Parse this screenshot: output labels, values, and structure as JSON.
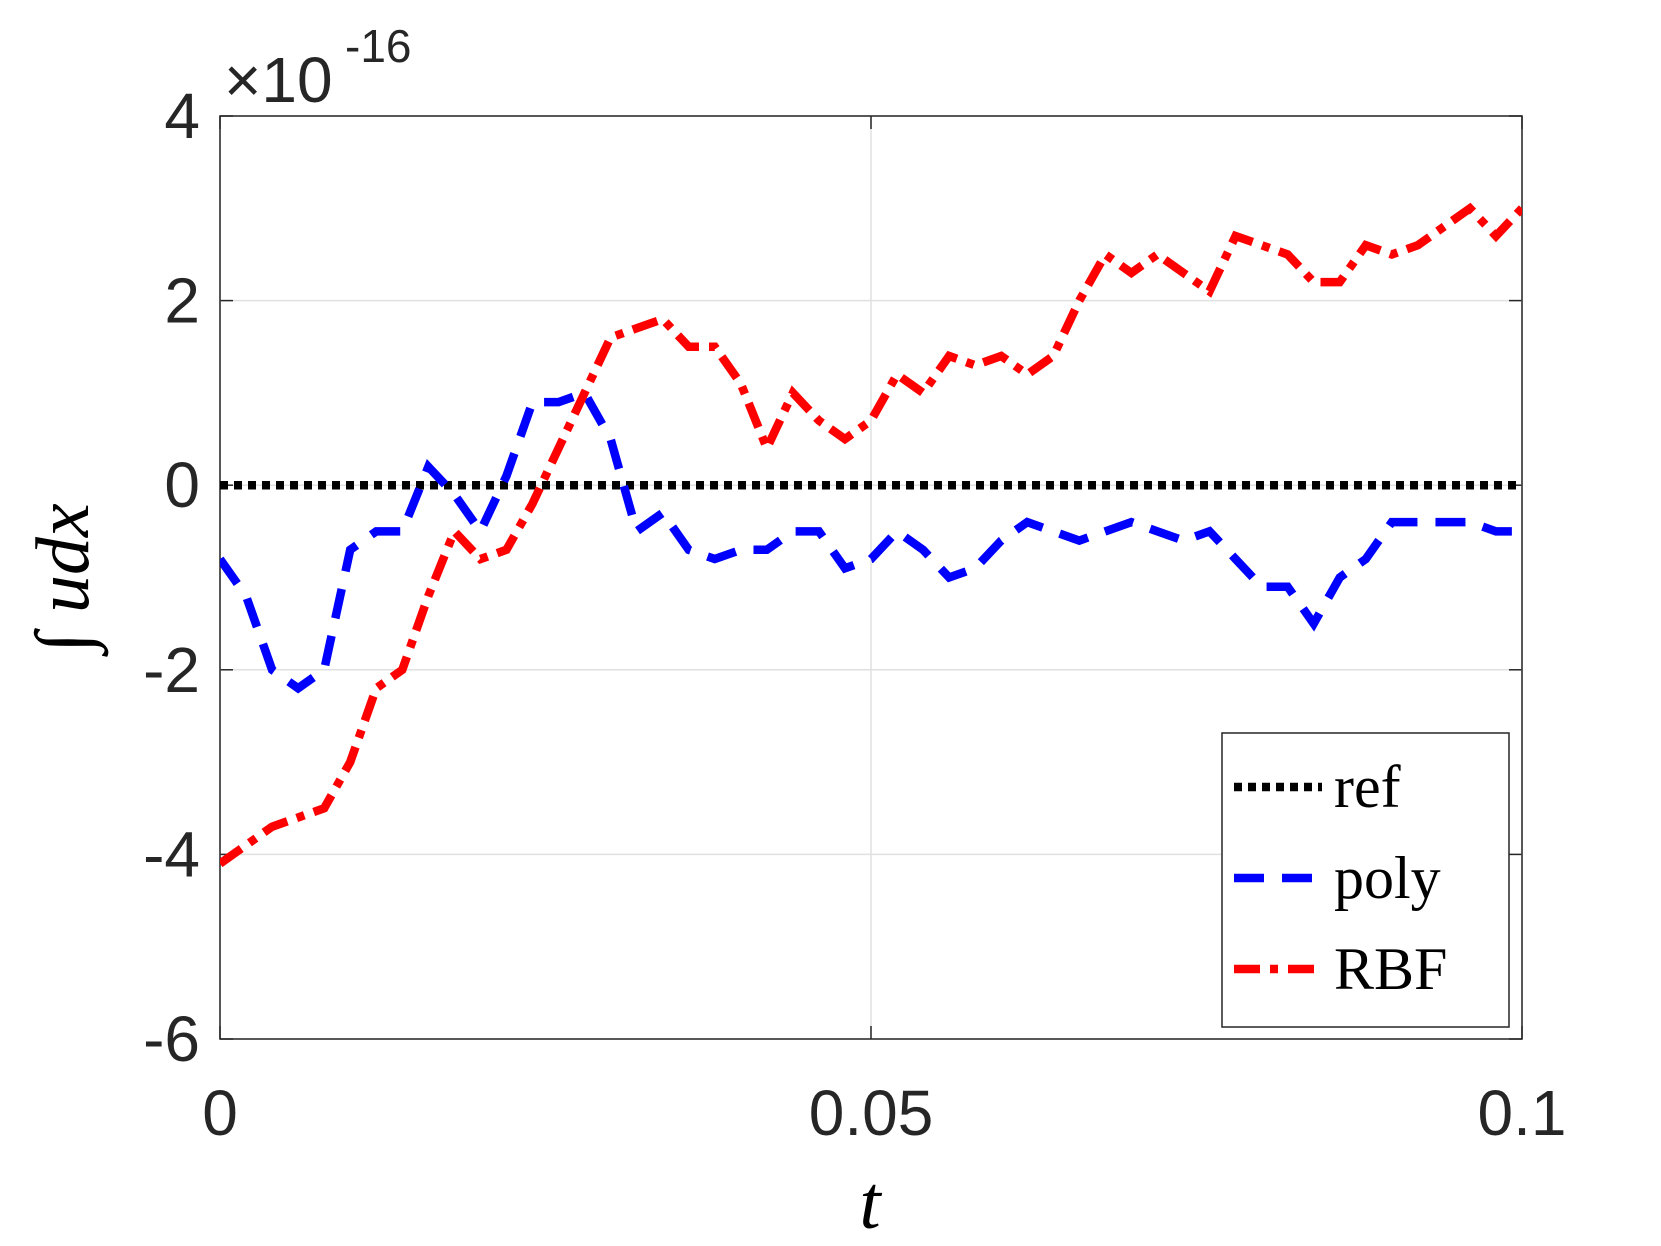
{
  "chart_data": {
    "type": "line",
    "xlabel": "t",
    "ylabel": "∫ udx",
    "y_multiplier": "×10",
    "y_multiplier_exponent": "-16",
    "xlim": [
      0,
      0.1
    ],
    "ylim": [
      -6,
      4
    ],
    "xticks": [
      0,
      0.05,
      0.1
    ],
    "yticks": [
      -6,
      -4,
      -2,
      0,
      2,
      4
    ],
    "grid": true,
    "legend": "lower right",
    "x": [
      0,
      0.002,
      0.004,
      0.006,
      0.008,
      0.01,
      0.012,
      0.014,
      0.016,
      0.018,
      0.02,
      0.022,
      0.024,
      0.026,
      0.028,
      0.03,
      0.032,
      0.034,
      0.036,
      0.038,
      0.04,
      0.042,
      0.044,
      0.046,
      0.048,
      0.05,
      0.052,
      0.054,
      0.056,
      0.058,
      0.06,
      0.062,
      0.064,
      0.066,
      0.068,
      0.07,
      0.072,
      0.074,
      0.076,
      0.078,
      0.08,
      0.082,
      0.084,
      0.086,
      0.088,
      0.09,
      0.092,
      0.094,
      0.096,
      0.098,
      0.1
    ],
    "series": [
      {
        "name": "ref",
        "color": "#000000",
        "linestyle": ":",
        "values": [
          0,
          0,
          0,
          0,
          0,
          0,
          0,
          0,
          0,
          0,
          0,
          0,
          0,
          0,
          0,
          0,
          0,
          0,
          0,
          0,
          0,
          0,
          0,
          0,
          0,
          0,
          0,
          0,
          0,
          0,
          0,
          0,
          0,
          0,
          0,
          0,
          0,
          0,
          0,
          0,
          0,
          0,
          0,
          0,
          0,
          0,
          0,
          0,
          0,
          0,
          0
        ]
      },
      {
        "name": "poly",
        "color": "#0000ff",
        "linestyle": "--",
        "values": [
          -0.8,
          -1.2,
          -2.0,
          -2.2,
          -2.0,
          -0.7,
          -0.5,
          -0.5,
          0.2,
          -0.1,
          -0.5,
          0.1,
          0.9,
          0.9,
          1.0,
          0.5,
          -0.5,
          -0.3,
          -0.7,
          -0.8,
          -0.7,
          -0.7,
          -0.5,
          -0.5,
          -0.9,
          -0.8,
          -0.5,
          -0.7,
          -1.0,
          -0.9,
          -0.6,
          -0.4,
          -0.5,
          -0.6,
          -0.5,
          -0.4,
          -0.5,
          -0.6,
          -0.5,
          -0.8,
          -1.1,
          -1.1,
          -1.5,
          -1.0,
          -0.8,
          -0.4,
          -0.4,
          -0.4,
          -0.4,
          -0.5,
          -0.5
        ]
      },
      {
        "name": "RBF",
        "color": "#ff0000",
        "linestyle": "-.",
        "values": [
          -4.1,
          -3.9,
          -3.7,
          -3.6,
          -3.5,
          -3.0,
          -2.2,
          -2.0,
          -1.2,
          -0.5,
          -0.8,
          -0.7,
          -0.2,
          0.4,
          1.0,
          1.6,
          1.7,
          1.8,
          1.5,
          1.5,
          1.1,
          0.4,
          1.0,
          0.7,
          0.5,
          0.7,
          1.2,
          1.0,
          1.4,
          1.3,
          1.4,
          1.2,
          1.4,
          2.0,
          2.5,
          2.3,
          2.5,
          2.3,
          2.1,
          2.7,
          2.6,
          2.5,
          2.2,
          2.2,
          2.6,
          2.5,
          2.6,
          2.8,
          3.0,
          2.7,
          3.0
        ]
      }
    ]
  }
}
